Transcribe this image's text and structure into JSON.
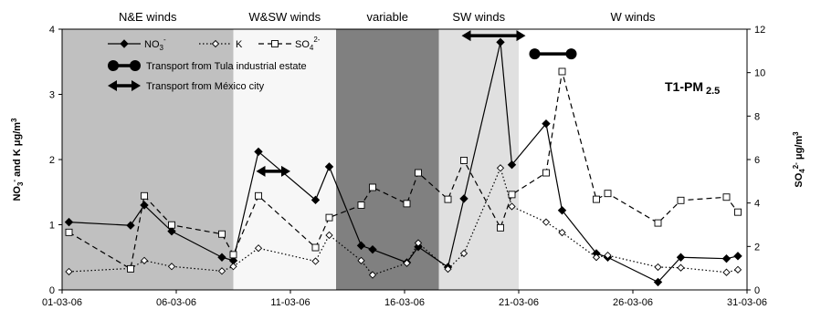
{
  "chart_data": {
    "type": "line",
    "panel_label": "T1-PM",
    "panel_label_sub": "2.5",
    "x_axis": {
      "type": "date",
      "range": [
        "2006-03-01",
        "2006-03-31"
      ],
      "tick_values": [
        "2006-03-01",
        "2006-03-06",
        "2006-03-11",
        "2006-03-16",
        "2006-03-21",
        "2006-03-26",
        "2006-03-31"
      ],
      "tick_labels": [
        "01-03-06",
        "06-03-06",
        "11-03-06",
        "16-03-06",
        "21-03-06",
        "26-03-06",
        "31-03-06"
      ]
    },
    "y_left": {
      "label_parts": [
        "NO",
        "3",
        "-",
        " and K μg/m",
        "3"
      ],
      "range": [
        0,
        4
      ],
      "ticks": [
        0,
        1,
        2,
        3,
        4
      ]
    },
    "y_right": {
      "label_parts": [
        "SO",
        "4",
        "2-",
        " μg/m",
        "3"
      ],
      "range": [
        0,
        12
      ],
      "ticks": [
        0,
        2,
        4,
        6,
        8,
        10,
        12
      ]
    },
    "bands": [
      {
        "label": "N&E winds",
        "start": "2006-03-01",
        "end": "2006-03-08.5",
        "color": "#c0c0c0"
      },
      {
        "label": "W&SW winds",
        "start": "2006-03-08.5",
        "end": "2006-03-13",
        "color": "#f7f7f7"
      },
      {
        "label": "variable",
        "start": "2006-03-13",
        "end": "2006-03-17.5",
        "color": "#808080"
      },
      {
        "label": "SW winds",
        "start": "2006-03-17.5",
        "end": "2006-03-21",
        "color": "#e0e0e0"
      },
      {
        "label": "W winds",
        "start": "2006-03-21",
        "end": "2006-03-31",
        "color": "#ffffff"
      }
    ],
    "legend": {
      "placement": "top-left",
      "series_entries": [
        {
          "series": "no3",
          "text": "NO",
          "sub": "3",
          "sup": "-"
        },
        {
          "series": "k",
          "text": "K",
          "sub": "",
          "sup": ""
        },
        {
          "series": "so4",
          "text": "SO",
          "sub": "4",
          "sup": "2-"
        }
      ],
      "markers": [
        {
          "symbol": "dumbbell",
          "text": "Transport from Tula industrial estate"
        },
        {
          "symbol": "double-arrow",
          "text": "Transport from México city"
        }
      ]
    },
    "annotations": [
      {
        "symbol": "double-arrow",
        "x_start": "2006-03-09.5",
        "x_end": "2006-03-11",
        "y_left": 1.82
      },
      {
        "symbol": "double-arrow",
        "x_start": "2006-03-18.5",
        "x_end": "2006-03-21.3",
        "y_left": 3.9
      },
      {
        "symbol": "dumbbell",
        "x_start": "2006-03-21.7",
        "x_end": "2006-03-23.3",
        "y_left": 3.62
      }
    ],
    "series": [
      {
        "key": "no3",
        "name": "NO3-",
        "axis": "left",
        "style": "solid",
        "marker": "filled-diamond",
        "color": "#000000",
        "points": [
          [
            "2006-03-01.3",
            1.04
          ],
          [
            "2006-03-04",
            0.99
          ],
          [
            "2006-03-04.6",
            1.3
          ],
          [
            "2006-03-05.8",
            0.9
          ],
          [
            "2006-03-08.0",
            0.5
          ],
          [
            "2006-03-08.5",
            0.45
          ],
          [
            "2006-03-09.6",
            2.12
          ],
          [
            "2006-03-12.1",
            1.38
          ],
          [
            "2006-03-12.7",
            1.89
          ],
          [
            "2006-03-14.1",
            0.68
          ],
          [
            "2006-03-14.6",
            0.62
          ],
          [
            "2006-03-16.1",
            0.42
          ],
          [
            "2006-03-16.6",
            0.66
          ],
          [
            "2006-03-17.9",
            0.35
          ],
          [
            "2006-03-18.6",
            1.4
          ],
          [
            "2006-03-20.2",
            3.8
          ],
          [
            "2006-03-20.7",
            1.92
          ],
          [
            "2006-03-22.2",
            2.55
          ],
          [
            "2006-03-22.9",
            1.22
          ],
          [
            "2006-03-24.4",
            0.56
          ],
          [
            "2006-03-24.9",
            0.5
          ],
          [
            "2006-03-27.1",
            0.12
          ],
          [
            "2006-03-28.1",
            0.5
          ],
          [
            "2006-03-30.1",
            0.48
          ],
          [
            "2006-03-30.6",
            0.52
          ]
        ]
      },
      {
        "key": "k",
        "name": "K",
        "axis": "left",
        "style": "dotted",
        "marker": "open-diamond",
        "color": "#000000",
        "points": [
          [
            "2006-03-01.3",
            0.28
          ],
          [
            "2006-03-04",
            0.33
          ],
          [
            "2006-03-04.6",
            0.45
          ],
          [
            "2006-03-05.8",
            0.36
          ],
          [
            "2006-03-08.0",
            0.29
          ],
          [
            "2006-03-08.5",
            0.36
          ],
          [
            "2006-03-09.6",
            0.64
          ],
          [
            "2006-03-12.1",
            0.44
          ],
          [
            "2006-03-12.7",
            0.84
          ],
          [
            "2006-03-14.1",
            0.45
          ],
          [
            "2006-03-14.6",
            0.23
          ],
          [
            "2006-03-16.1",
            0.41
          ],
          [
            "2006-03-16.6",
            0.72
          ],
          [
            "2006-03-17.9",
            0.32
          ],
          [
            "2006-03-18.6",
            0.56
          ],
          [
            "2006-03-20.2",
            1.87
          ],
          [
            "2006-03-20.7",
            1.28
          ],
          [
            "2006-03-22.2",
            1.04
          ],
          [
            "2006-03-22.9",
            0.88
          ],
          [
            "2006-03-24.4",
            0.5
          ],
          [
            "2006-03-24.9",
            0.53
          ],
          [
            "2006-03-27.1",
            0.35
          ],
          [
            "2006-03-28.1",
            0.34
          ],
          [
            "2006-03-30.1",
            0.27
          ],
          [
            "2006-03-30.6",
            0.31
          ]
        ]
      },
      {
        "key": "so4",
        "name": "SO42-",
        "axis": "right",
        "style": "dashed",
        "marker": "open-square",
        "color": "#000000",
        "points": [
          [
            "2006-03-01.3",
            2.65
          ],
          [
            "2006-03-04",
            0.97
          ],
          [
            "2006-03-04.6",
            4.33
          ],
          [
            "2006-03-05.8",
            2.99
          ],
          [
            "2006-03-08.0",
            2.57
          ],
          [
            "2006-03-08.5",
            1.62
          ],
          [
            "2006-03-09.6",
            4.33
          ],
          [
            "2006-03-12.1",
            1.95
          ],
          [
            "2006-03-12.7",
            3.33
          ],
          [
            "2006-03-14.1",
            3.9
          ],
          [
            "2006-03-14.6",
            4.72
          ],
          [
            "2006-03-16.1",
            3.97
          ],
          [
            "2006-03-16.6",
            5.39
          ],
          [
            "2006-03-17.9",
            4.17
          ],
          [
            "2006-03-18.6",
            5.96
          ],
          [
            "2006-03-20.2",
            2.86
          ],
          [
            "2006-03-20.7",
            4.39
          ],
          [
            "2006-03-22.2",
            5.39
          ],
          [
            "2006-03-22.9",
            10.05
          ],
          [
            "2006-03-24.4",
            4.17
          ],
          [
            "2006-03-24.9",
            4.44
          ],
          [
            "2006-03-27.1",
            3.08
          ],
          [
            "2006-03-28.1",
            4.12
          ],
          [
            "2006-03-30.1",
            4.27
          ],
          [
            "2006-03-30.6",
            3.58
          ]
        ]
      }
    ]
  }
}
